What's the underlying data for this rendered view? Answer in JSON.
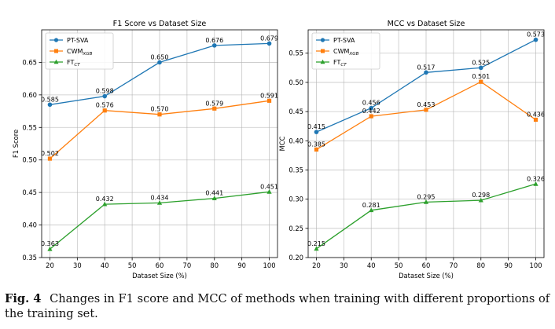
{
  "figure": {
    "caption_label": "Fig. 4",
    "caption_text": "Changes in F1 score and MCC of methods when training with different proportions of the training set."
  },
  "colors": {
    "PT-SVA": "#1f77b4",
    "CWM_XGB": "#ff7f0e",
    "FT_CT": "#2ca02c"
  },
  "chart_data": [
    {
      "type": "line",
      "title": "F1 Score vs Dataset Size",
      "xlabel": "Dataset Size (%)",
      "ylabel": "F1 Score",
      "x": [
        20,
        40,
        60,
        80,
        100
      ],
      "xticks": [
        20,
        30,
        40,
        50,
        60,
        70,
        80,
        90,
        100
      ],
      "xlim": [
        17,
        103
      ],
      "ylim": [
        0.35,
        0.7
      ],
      "yticks": [
        0.35,
        0.4,
        0.45,
        0.5,
        0.55,
        0.6,
        0.65
      ],
      "ytick_labels": [
        "0.35",
        "0.40",
        "0.45",
        "0.50",
        "0.55",
        "0.60",
        "0.65"
      ],
      "grid": true,
      "legend_position": "top-left",
      "series": [
        {
          "name": "PT-SVA",
          "name_main": "PT-SVA",
          "name_sub": "",
          "color": "#1f77b4",
          "marker": "circle",
          "values": [
            0.585,
            0.598,
            0.65,
            0.676,
            0.679
          ],
          "labels": [
            "0.585",
            "0.598",
            "0.650",
            "0.676",
            "0.679"
          ]
        },
        {
          "name": "CWMXGB",
          "name_main": "CWM",
          "name_sub": "XGB",
          "color": "#ff7f0e",
          "marker": "square",
          "values": [
            0.502,
            0.576,
            0.57,
            0.579,
            0.591
          ],
          "labels": [
            "0.502",
            "0.576",
            "0.570",
            "0.579",
            "0.591"
          ]
        },
        {
          "name": "FTCT",
          "name_main": "FT",
          "name_sub": "CT",
          "color": "#2ca02c",
          "marker": "triangle",
          "values": [
            0.363,
            0.432,
            0.434,
            0.441,
            0.451
          ],
          "labels": [
            "0.363",
            "0.432",
            "0.434",
            "0.441",
            "0.451"
          ]
        }
      ]
    },
    {
      "type": "line",
      "title": "MCC vs Dataset Size",
      "xlabel": "Dataset Size (%)",
      "ylabel": "MCC",
      "x": [
        20,
        40,
        60,
        80,
        100
      ],
      "xticks": [
        20,
        30,
        40,
        50,
        60,
        70,
        80,
        90,
        100
      ],
      "xlim": [
        17,
        103
      ],
      "ylim": [
        0.2,
        0.59
      ],
      "yticks": [
        0.2,
        0.25,
        0.3,
        0.35,
        0.4,
        0.45,
        0.5,
        0.55
      ],
      "ytick_labels": [
        "0.20",
        "0.25",
        "0.30",
        "0.35",
        "0.40",
        "0.45",
        "0.50",
        "0.55"
      ],
      "grid": true,
      "legend_position": "top-left",
      "series": [
        {
          "name": "PT-SVA",
          "name_main": "PT-SVA",
          "name_sub": "",
          "color": "#1f77b4",
          "marker": "circle",
          "values": [
            0.415,
            0.456,
            0.517,
            0.525,
            0.573
          ],
          "labels": [
            "0.415",
            "0.456",
            "0.517",
            "0.525",
            "0.573"
          ]
        },
        {
          "name": "CWMXGB",
          "name_main": "CWM",
          "name_sub": "XGB",
          "color": "#ff7f0e",
          "marker": "square",
          "values": [
            0.385,
            0.442,
            0.453,
            0.501,
            0.436
          ],
          "labels": [
            "0.385",
            "0.442",
            "0.453",
            "0.501",
            "0.436"
          ]
        },
        {
          "name": "FTCT",
          "name_main": "FT",
          "name_sub": "CT",
          "color": "#2ca02c",
          "marker": "triangle",
          "values": [
            0.215,
            0.281,
            0.295,
            0.298,
            0.326
          ],
          "labels": [
            "0.215",
            "0.281",
            "0.295",
            "0.298",
            "0.326"
          ]
        }
      ]
    }
  ]
}
